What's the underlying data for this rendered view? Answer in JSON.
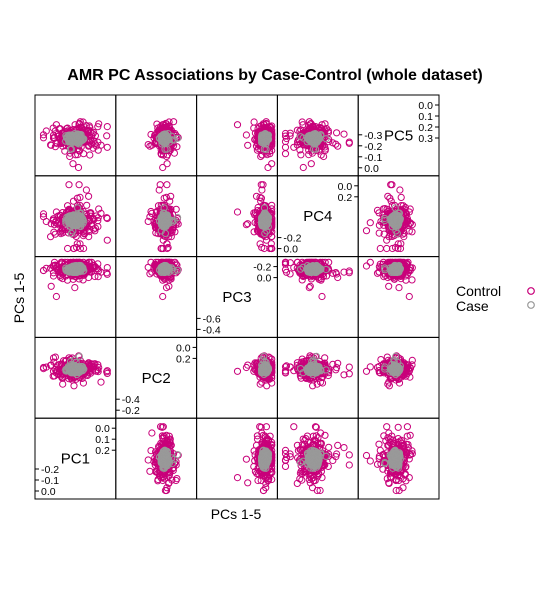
{
  "chart_data": {
    "type": "scatter",
    "title": "AMR PC Associations by Case-Control (whole dataset)",
    "xlabel": "PCs 1-5",
    "ylabel": "PCs 1-5",
    "variables": [
      "PC1",
      "PC2",
      "PC3",
      "PC4",
      "PC5"
    ],
    "ranges": {
      "PC1": [
        -0.22,
        0.22
      ],
      "PC2": [
        -0.52,
        0.32
      ],
      "PC3": [
        -0.68,
        0.08
      ],
      "PC4": [
        -0.24,
        0.3
      ],
      "PC5": [
        -0.34,
        0.4
      ]
    },
    "diagonal_ticks": {
      "PC1": {
        "low": [
          "-0.2",
          "-0.1",
          "0.0"
        ],
        "high": [
          "0.0",
          "0.1",
          "0.2"
        ]
      },
      "PC2": {
        "low": [
          "-0.4",
          "-0.2"
        ],
        "high": [
          "0.0",
          "0.2"
        ]
      },
      "PC3": {
        "low": [
          "-0.6",
          "-0.4"
        ],
        "high": [
          "-0.2",
          "0.0"
        ]
      },
      "PC4": {
        "low": [
          "-0.2",
          "0.0"
        ],
        "high": [
          "0.0",
          "0.2"
        ]
      },
      "PC5": {
        "low": [
          "-0.3",
          "-0.2",
          "-0.1",
          "0.0"
        ],
        "high": [
          "0.0",
          "0.1",
          "0.2",
          "0.3"
        ]
      }
    },
    "series": [
      {
        "name": "Control",
        "color": "#c8007a",
        "marker": "open-circle"
      },
      {
        "name": "Case",
        "color": "#999999",
        "marker": "open-circle"
      }
    ],
    "legend_position": "right",
    "grid": false
  }
}
